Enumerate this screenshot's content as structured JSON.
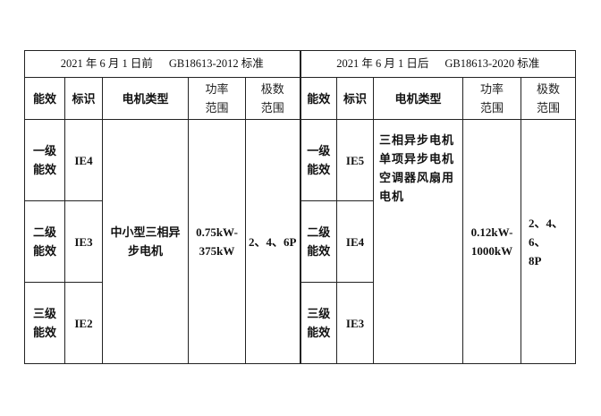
{
  "left": {
    "title_date": "2021 年 6 月 1 日前",
    "title_std": "GB18613-2012 标准",
    "headers": [
      "能效",
      "标识",
      "电机类型",
      "功率\n范围",
      "极数\n范围"
    ],
    "rows": [
      {
        "level": "一级\n能效",
        "mark": "IE4"
      },
      {
        "level": "二级\n能效",
        "mark": "IE3"
      },
      {
        "level": "三级\n能效",
        "mark": "IE2"
      }
    ],
    "motor_type": "中小型三相异\n步电机",
    "power_range": "0.75kW-\n375kW",
    "poles": "2、4、6P"
  },
  "right": {
    "title_date": "2021 年 6 月 1 日后",
    "title_std": "GB18613-2020 标准",
    "headers": [
      "能效",
      "标识",
      "电机类型",
      "功率\n范围",
      "极数\n范围"
    ],
    "rows": [
      {
        "level": "一级\n能效",
        "mark": "IE5"
      },
      {
        "level": "二级\n能效",
        "mark": "IE4"
      },
      {
        "level": "三级\n能效",
        "mark": "IE3"
      }
    ],
    "motor_type": "三相异步电机\n单项异步电机\n空调器风扇用\n电机",
    "power_range": "0.12kW-\n1000kW",
    "poles": "2、4、6、\n8P"
  }
}
